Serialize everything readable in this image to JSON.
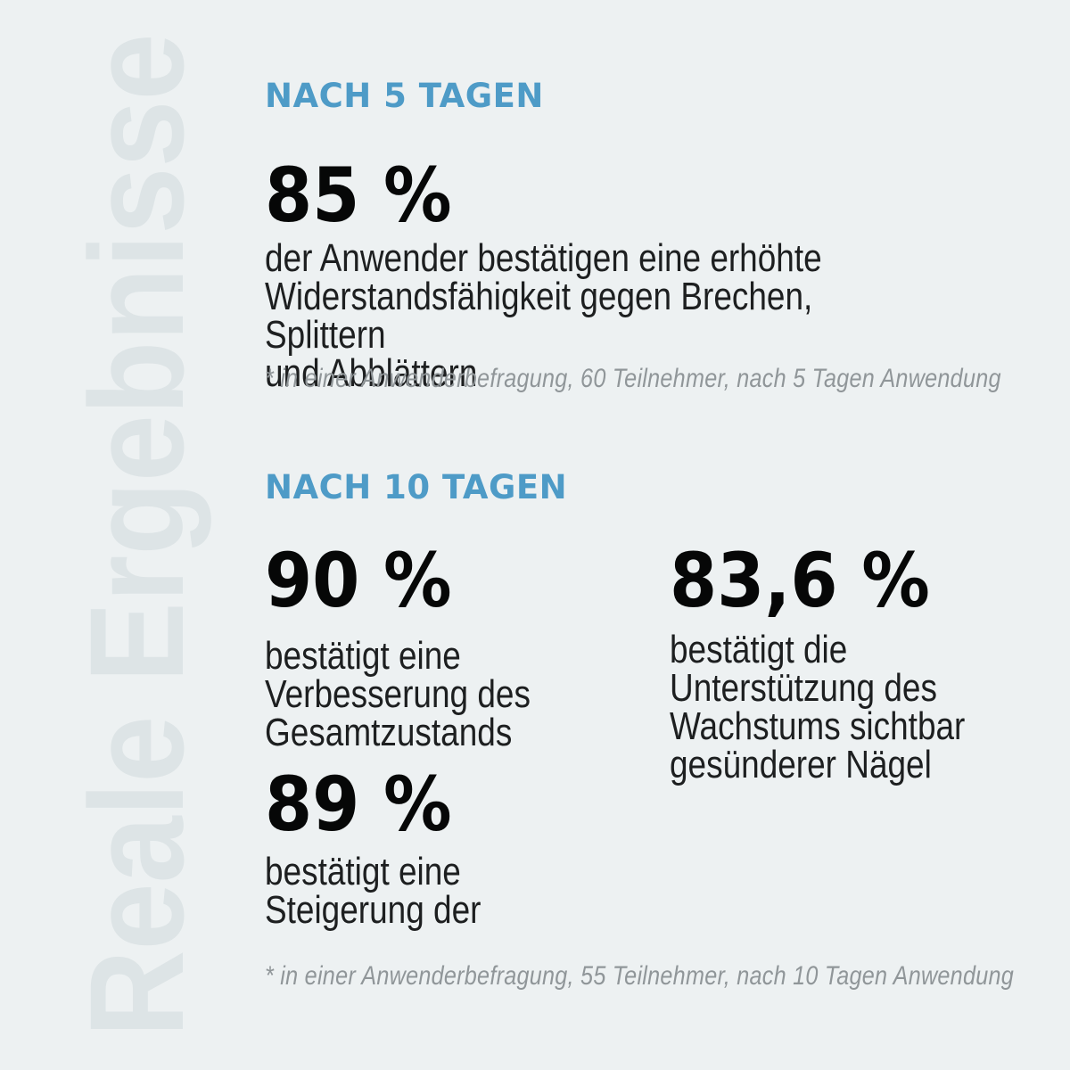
{
  "page": {
    "watermark": "Reale Ergebnisse",
    "colors": {
      "background": "#edf1f2",
      "accent_blue": "#4e9bc7",
      "watermark_gray": "#dde4e6",
      "number_black": "#060707",
      "body_text": "#1d1f20",
      "footnote_gray": "#909699"
    }
  },
  "after_5_days": {
    "heading": "NACH 5 TAGEN",
    "stat": {
      "value": "85 %",
      "description": "der Anwender bestätigen eine erhöhte\nWiderstandsfähigkeit gegen Brechen, Splittern\nund Abblättern"
    },
    "footnote": "* in einer Anwenderbefragung, 60 Teilnehmer, nach 5 Tagen Anwendung"
  },
  "after_10_days": {
    "heading": "NACH 10 TAGEN",
    "stats": [
      {
        "value": "90 %",
        "description": "bestätigt eine\nVerbesserung des\nGesamtzustands"
      },
      {
        "value": "89 %",
        "description": "bestätigt eine\nSteigerung der"
      },
      {
        "value": "83,6 %",
        "description": "bestätigt die\nUnterstützung des\nWachstums sichtbar\ngesünderer Nägel"
      }
    ],
    "footnote": "* in einer Anwenderbefragung, 55 Teilnehmer, nach 10 Tagen Anwendung"
  }
}
